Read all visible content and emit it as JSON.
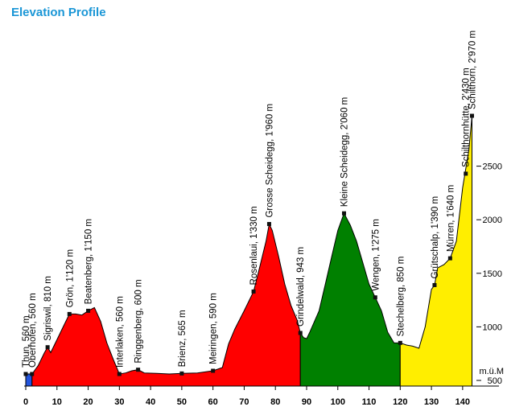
{
  "page": {
    "title": "Elevation Profile"
  },
  "chart_data": {
    "type": "area",
    "title": "Elevation Profile",
    "xlabel": "",
    "ylabel": "",
    "xlim": [
      0,
      147
    ],
    "ylim": [
      400,
      3000
    ],
    "x_ticks": [
      0,
      10,
      20,
      30,
      40,
      50,
      60,
      70,
      80,
      90,
      100,
      110,
      120,
      130,
      140
    ],
    "y_ticks": [
      {
        "value": 500,
        "label": "500"
      },
      {
        "value": 1000,
        "label": "1000"
      },
      {
        "value": 1500,
        "label": "1500"
      },
      {
        "value": 2000,
        "label": "2000"
      },
      {
        "value": 2500,
        "label": "2500"
      }
    ],
    "y_unit_label": "m.ü.M",
    "segments": [
      {
        "color": "#2255dd",
        "points": [
          [
            0,
            560
          ],
          [
            2,
            560
          ]
        ]
      },
      {
        "color": "#ff0000",
        "points": [
          [
            2,
            560
          ],
          [
            4,
            640
          ],
          [
            6,
            760
          ],
          [
            7,
            810
          ],
          [
            8,
            760
          ],
          [
            10,
            880
          ],
          [
            12,
            1000
          ],
          [
            14,
            1120
          ],
          [
            16,
            1120
          ],
          [
            18,
            1110
          ],
          [
            20,
            1150
          ],
          [
            22,
            1180
          ],
          [
            24,
            1050
          ],
          [
            26,
            850
          ],
          [
            28,
            700
          ],
          [
            30,
            560
          ],
          [
            32,
            570
          ],
          [
            34,
            590
          ],
          [
            36,
            600
          ],
          [
            38,
            570
          ],
          [
            42,
            565
          ],
          [
            46,
            560
          ],
          [
            50,
            565
          ],
          [
            55,
            570
          ],
          [
            60,
            590
          ],
          [
            63,
            620
          ],
          [
            65,
            840
          ],
          [
            67,
            980
          ],
          [
            70,
            1150
          ],
          [
            73,
            1330
          ],
          [
            75,
            1560
          ],
          [
            77,
            1800
          ],
          [
            78,
            1960
          ],
          [
            79,
            1900
          ],
          [
            81,
            1660
          ],
          [
            83,
            1400
          ],
          [
            85,
            1200
          ],
          [
            87,
            1060
          ],
          [
            88,
            943
          ]
        ]
      },
      {
        "color": "#008000",
        "points": [
          [
            88,
            943
          ],
          [
            89,
            900
          ],
          [
            90,
            890
          ],
          [
            91,
            950
          ],
          [
            94,
            1150
          ],
          [
            96,
            1400
          ],
          [
            98,
            1650
          ],
          [
            100,
            1900
          ],
          [
            102,
            2060
          ],
          [
            104,
            1950
          ],
          [
            106,
            1800
          ],
          [
            108,
            1600
          ],
          [
            110,
            1400
          ],
          [
            112,
            1275
          ],
          [
            114,
            1150
          ],
          [
            116,
            950
          ],
          [
            118,
            850
          ],
          [
            120,
            850
          ]
        ]
      },
      {
        "color": "#ffee00",
        "points": [
          [
            120,
            850
          ],
          [
            122,
            830
          ],
          [
            124,
            820
          ],
          [
            126,
            800
          ],
          [
            128,
            1000
          ],
          [
            130,
            1350
          ],
          [
            131,
            1390
          ],
          [
            132,
            1550
          ],
          [
            134,
            1580
          ],
          [
            136,
            1640
          ],
          [
            138,
            1800
          ],
          [
            140,
            2300
          ],
          [
            142,
            2650
          ],
          [
            143,
            2970
          ]
        ]
      }
    ],
    "annotations": [
      {
        "label": "Thun, 560 m",
        "x": 0,
        "y": 560
      },
      {
        "label": "Oberhofen, 560 m",
        "x": 2,
        "y": 560
      },
      {
        "label": "Sigriswil, 810 m",
        "x": 7,
        "y": 810
      },
      {
        "label": "Grön, 1'120 m",
        "x": 14,
        "y": 1120
      },
      {
        "label": "Beatenberg, 1'150 m",
        "x": 20,
        "y": 1150
      },
      {
        "label": "Interlaken, 560 m",
        "x": 30,
        "y": 560
      },
      {
        "label": "Ringgenberg, 600 m",
        "x": 36,
        "y": 600
      },
      {
        "label": "Brienz, 565 m",
        "x": 50,
        "y": 565
      },
      {
        "label": "Meiringen, 590 m",
        "x": 60,
        "y": 590
      },
      {
        "label": "Rosenlaui, 1'330 m",
        "x": 73,
        "y": 1330
      },
      {
        "label": "Grosse Scheidegg, 1'960 m",
        "x": 78,
        "y": 1960
      },
      {
        "label": "Grindelwald, 943 m",
        "x": 88,
        "y": 943
      },
      {
        "label": "Kleine Scheidegg, 2'060 m",
        "x": 102,
        "y": 2060
      },
      {
        "label": "Wengen, 1'275 m",
        "x": 112,
        "y": 1275
      },
      {
        "label": "Stechelberg, 850 m",
        "x": 120,
        "y": 850
      },
      {
        "label": "Grütschalp, 1'390 m",
        "x": 131,
        "y": 1390
      },
      {
        "label": "Mürren, 1'640 m",
        "x": 136,
        "y": 1640
      },
      {
        "label": "Schilthornhütte, 2'430 m",
        "x": 141,
        "y": 2430
      },
      {
        "label": "Schilthorn, 2'970 m",
        "x": 143,
        "y": 2970
      }
    ]
  }
}
